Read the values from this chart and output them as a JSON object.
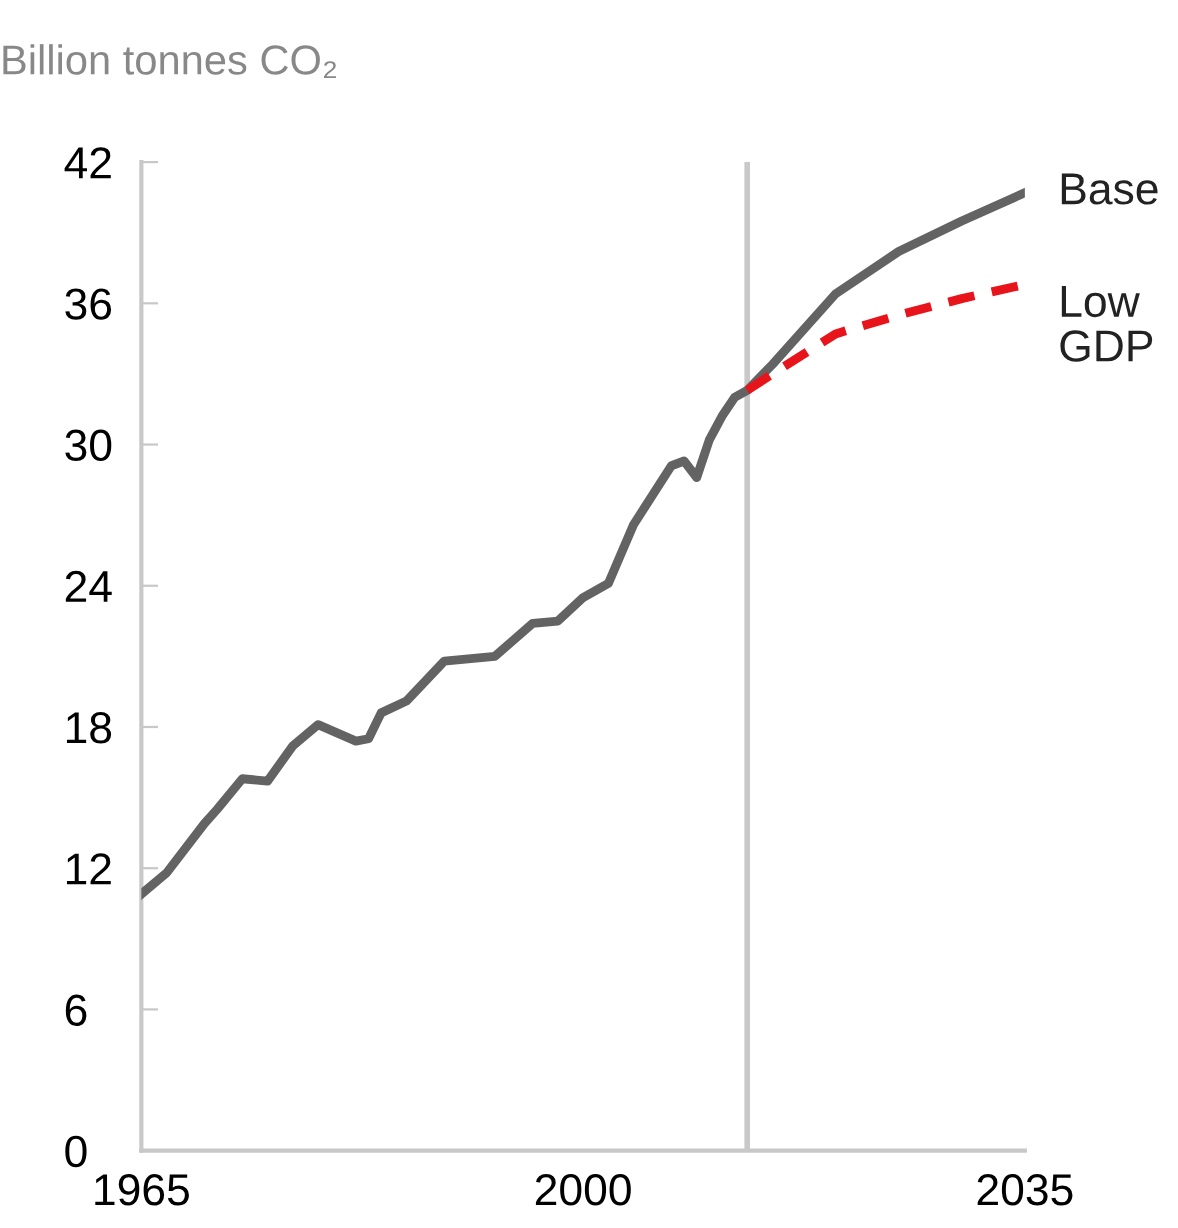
{
  "chart_data": {
    "type": "line",
    "ylabel": "Billion tonnes CO₂",
    "xlim": [
      1965,
      2035
    ],
    "xticks": [
      1965,
      2000,
      2035
    ],
    "ylim": [
      0,
      42
    ],
    "yticks": [
      0,
      6,
      12,
      18,
      24,
      30,
      36,
      42
    ],
    "grid": false,
    "legend": false,
    "marker": "none",
    "ref_lines": [
      {
        "axis": "x",
        "value": 2013,
        "color": "#c8c8c8"
      }
    ],
    "series": [
      {
        "name": "Base",
        "color": "#636363",
        "line_style": "solid",
        "x": [
          1965,
          1967,
          1970,
          1971,
          1973,
          1975,
          1977,
          1979,
          1982,
          1983,
          1984,
          1986,
          1989,
          1993,
          1996,
          1998,
          2000,
          2002,
          2004,
          2007,
          2008,
          2009,
          2010,
          2011,
          2012,
          2013,
          2015,
          2020,
          2025,
          2030,
          2035
        ],
        "values": [
          10.9,
          11.8,
          13.9,
          14.5,
          15.8,
          15.7,
          17.2,
          18.1,
          17.4,
          17.5,
          18.6,
          19.1,
          20.8,
          21.0,
          22.4,
          22.5,
          23.5,
          24.1,
          26.6,
          29.1,
          29.3,
          28.6,
          30.2,
          31.2,
          32.0,
          32.3,
          33.4,
          36.4,
          38.2,
          39.5,
          40.7
        ]
      },
      {
        "name": "Low\nGDP",
        "color": "#e8141c",
        "line_style": "dashed",
        "x": [
          2013,
          2015,
          2020,
          2025,
          2030,
          2035
        ],
        "values": [
          32.3,
          33.0,
          34.7,
          35.5,
          36.2,
          36.8
        ]
      }
    ]
  }
}
